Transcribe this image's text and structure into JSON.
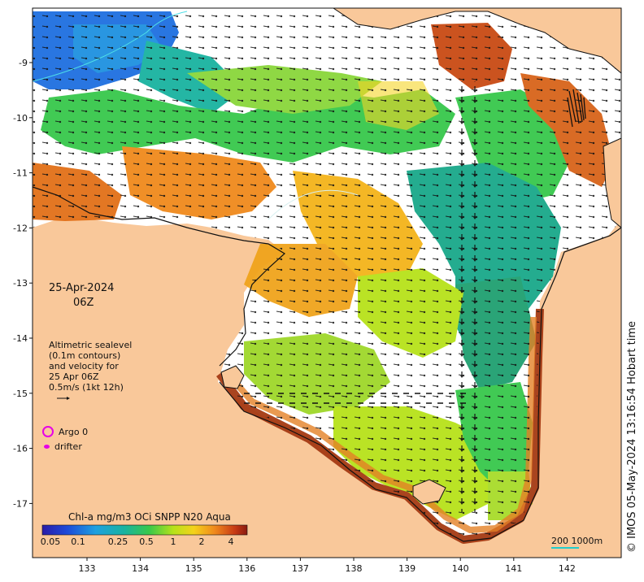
{
  "map": {
    "date": "25-Apr-2024",
    "time": "06Z",
    "description": [
      "Altimetric sealevel",
      "(0.1m contours)",
      "and velocity for",
      "25 Apr 06Z",
      "0.5m/s (1kt 12h)"
    ],
    "legend": {
      "argo": "Argo 0",
      "drifter": "drifter"
    },
    "colorbar": {
      "title": "Chl-a mg/m3 OCi SNPP N20 Aqua",
      "ticks": [
        "0.05",
        "0.1",
        "0.25",
        "0.5",
        "1",
        "2",
        "4"
      ]
    },
    "scale_label": "200  1000m",
    "credit": "© IMOS 05-May-2024 13:16:54 Hobart time",
    "lon_ticks": [
      "133",
      "134",
      "135",
      "136",
      "137",
      "138",
      "139",
      "140",
      "141",
      "142"
    ],
    "lat_ticks": [
      "9",
      "10",
      "11",
      "12",
      "13",
      "14",
      "15",
      "16",
      "17"
    ],
    "colors": {
      "land": "#f9c89a",
      "no_data": "#ffffff",
      "magenta": "#e600e6",
      "scale_cyan": "#22cccc"
    }
  }
}
